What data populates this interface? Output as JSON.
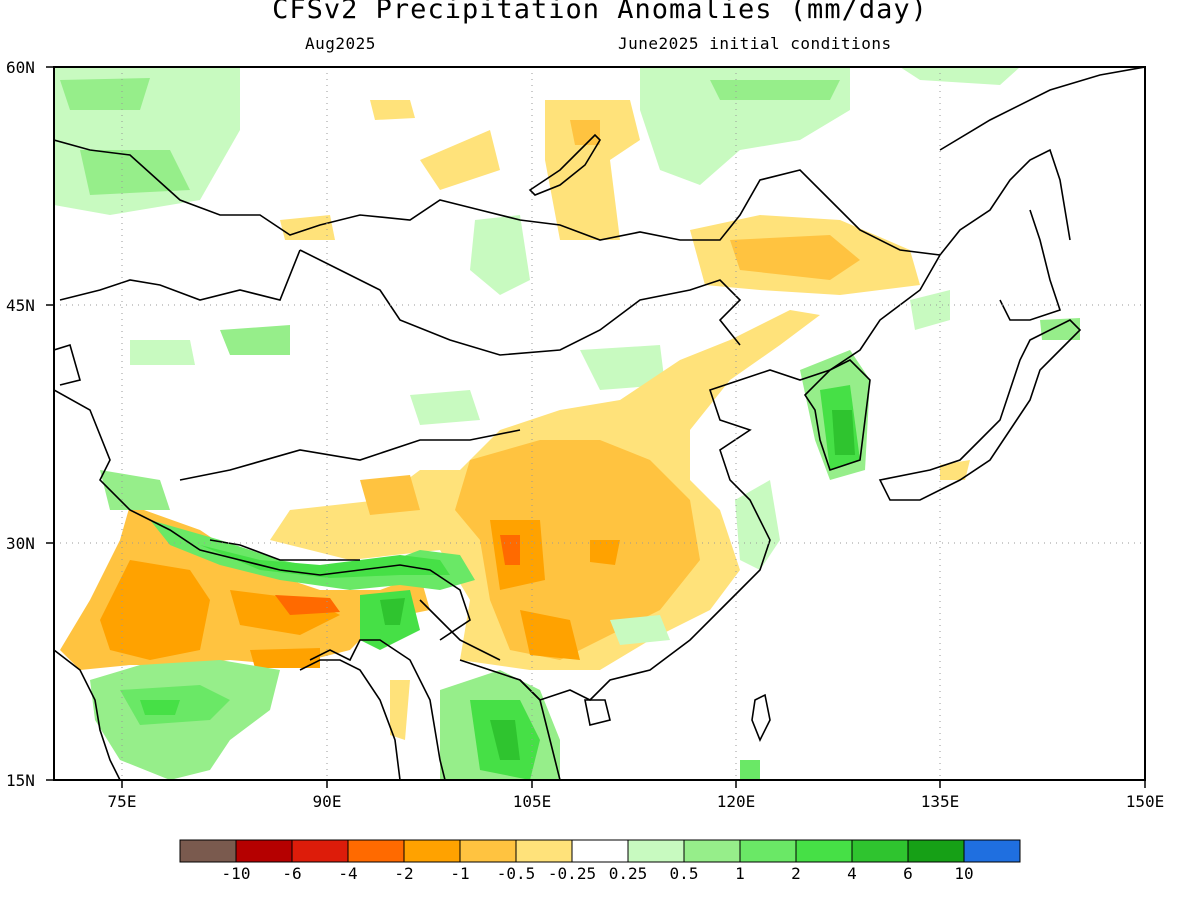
{
  "title": "CFSv2 Precipitation Anomalies (mm/day)",
  "subtitle_left": "Aug2025",
  "subtitle_right": "June2025 initial conditions",
  "map": {
    "lat_range": [
      15,
      60
    ],
    "lon_range": [
      70,
      150
    ],
    "lat_labels": [
      "60N",
      "45N",
      "30N",
      "15N"
    ],
    "lon_labels": [
      "75E",
      "90E",
      "105E",
      "120E",
      "135E",
      "150E"
    ],
    "grid": "dotted"
  },
  "colorbar": {
    "colors": [
      "#7a5a4e",
      "#b50000",
      "#dd1c0a",
      "#ff6a00",
      "#ffa200",
      "#ffc340",
      "#ffe27a",
      "#ffffff",
      "#c8fac0",
      "#96ee8a",
      "#6ae866",
      "#46e046",
      "#2fc42f",
      "#16a016",
      "#1f6fe0"
    ],
    "labels": [
      "-10",
      "-6",
      "-4",
      "-2",
      "-1",
      "-0.5",
      "-0.25",
      "0.25",
      "0.5",
      "1",
      "2",
      "4",
      "6",
      "10"
    ]
  },
  "anomaly_regions": [
    {
      "region": "Central & Southwest China",
      "sign": "dry",
      "level": "-0.5 to -1"
    },
    {
      "region": "Northern India / Nepal",
      "sign": "dry",
      "level": "-1 to -2"
    },
    {
      "region": "Northeast China",
      "sign": "dry",
      "level": "-0.5 to -1"
    },
    {
      "region": "Himalaya southern flank",
      "sign": "wet",
      "level": "1 to 4"
    },
    {
      "region": "Southern India",
      "sign": "wet",
      "level": "0.5 to 2"
    },
    {
      "region": "Korea",
      "sign": "wet",
      "level": "2 to 6"
    },
    {
      "region": "Siberia / Kazakhstan",
      "sign": "wet",
      "level": "0.5 to 1"
    }
  ]
}
